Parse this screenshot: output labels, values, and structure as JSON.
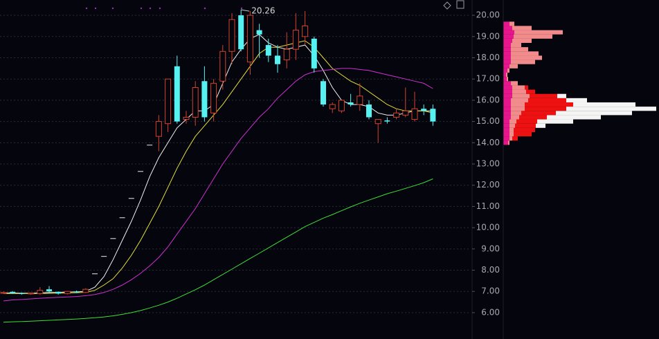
{
  "chart_data": {
    "type": "candlestick",
    "up_color": "#d2432e",
    "down_color": "#56f2f2",
    "flat_color": "#c8c8c8",
    "grid": true,
    "ylim": [
      4.76,
      20.72
    ],
    "yticks": [
      {
        "value": 20,
        "label": "20.00"
      },
      {
        "value": 19,
        "label": "19.00"
      },
      {
        "value": 18,
        "label": "18.00"
      },
      {
        "value": 17,
        "label": "17.00"
      },
      {
        "value": 16,
        "label": "16.00"
      },
      {
        "value": 15,
        "label": "15.00"
      },
      {
        "value": 14,
        "label": "14.00"
      },
      {
        "value": 13,
        "label": "13.00"
      },
      {
        "value": 12,
        "label": "12.00"
      },
      {
        "value": 11,
        "label": "11.00"
      },
      {
        "value": 10,
        "label": "10.00"
      },
      {
        "value": 9,
        "label": "9.00"
      },
      {
        "value": 8,
        "label": "8.00"
      },
      {
        "value": 7,
        "label": "7.00"
      },
      {
        "value": 6,
        "label": "6.00"
      }
    ],
    "open": [
      6.92,
      6.98,
      6.92,
      6.88,
      6.9,
      7.1,
      6.98,
      6.9,
      7.0,
      6.95,
      7.85,
      8.67,
      9.51,
      10.49,
      11.4,
      12.67,
      13.91,
      14.3,
      14.9,
      17.6,
      15.1,
      15.2,
      16.9,
      15.4,
      16.9,
      18.3,
      20.0,
      17.8,
      19.3,
      18.6,
      18.1,
      17.9,
      18.4,
      19.0,
      18.9,
      16.9,
      15.6,
      15.5,
      15.9,
      15.8,
      15.8,
      14.9,
      15.05,
      15.2,
      15.3,
      15.1,
      15.6,
      15.6
    ],
    "high": [
      7.0,
      7.02,
      6.95,
      6.94,
      7.2,
      7.25,
      7.0,
      7.02,
      7.04,
      7.15,
      7.85,
      8.67,
      9.51,
      10.49,
      11.4,
      12.67,
      13.91,
      15.3,
      17.0,
      18.1,
      15.5,
      16.9,
      17.6,
      17.0,
      18.6,
      20.1,
      20.26,
      20.2,
      19.6,
      18.9,
      18.6,
      19.2,
      20.1,
      20.2,
      19.0,
      17.0,
      15.9,
      16.0,
      16.3,
      16.8,
      16.0,
      15.1,
      15.2,
      15.6,
      16.6,
      16.4,
      15.8,
      15.8
    ],
    "low": [
      6.88,
      6.88,
      6.85,
      6.84,
      6.85,
      6.95,
      6.85,
      6.86,
      6.92,
      6.92,
      7.85,
      8.67,
      9.51,
      10.49,
      11.4,
      12.67,
      13.91,
      13.6,
      14.5,
      14.9,
      14.9,
      14.8,
      15.0,
      15.0,
      16.5,
      17.7,
      18.3,
      17.2,
      18.0,
      17.8,
      17.3,
      17.5,
      17.9,
      18.6,
      17.3,
      15.7,
      15.4,
      15.4,
      15.7,
      15.5,
      15.1,
      14.0,
      14.9,
      15.1,
      15.2,
      15.0,
      15.3,
      14.8
    ],
    "close": [
      6.95,
      6.92,
      6.88,
      6.92,
      7.05,
      7.0,
      6.9,
      7.0,
      6.95,
      7.1,
      7.85,
      8.67,
      9.51,
      10.49,
      11.4,
      12.67,
      13.91,
      15.0,
      17.0,
      15.0,
      15.2,
      16.6,
      15.2,
      16.8,
      18.3,
      19.8,
      18.4,
      20.0,
      19.1,
      18.1,
      17.7,
      18.4,
      19.3,
      19.5,
      17.5,
      15.8,
      15.8,
      16.0,
      15.8,
      16.2,
      15.2,
      15.1,
      15.0,
      15.4,
      15.5,
      15.6,
      15.5,
      15.0
    ],
    "max_annotation": 20.26,
    "moving_averages": [
      {
        "color": "#f2f2f2",
        "values": [
          6.93,
          6.93,
          6.92,
          6.92,
          6.93,
          6.95,
          6.96,
          6.97,
          6.98,
          7.0,
          7.2,
          7.7,
          8.5,
          9.4,
          10.3,
          11.3,
          12.4,
          13.3,
          14.0,
          14.7,
          15.1,
          15.5,
          15.5,
          15.8,
          16.8,
          17.8,
          18.4,
          18.9,
          19.1,
          18.7,
          18.5,
          18.4,
          18.5,
          18.6,
          18.1,
          17.4,
          16.6,
          16.0,
          15.8,
          15.8,
          15.7,
          15.4,
          15.3,
          15.3,
          15.4,
          15.5,
          15.5,
          15.5
        ]
      },
      {
        "color": "#e6df3a",
        "values": [
          6.9,
          6.9,
          6.9,
          6.9,
          6.9,
          6.91,
          6.92,
          6.93,
          6.94,
          6.96,
          7.05,
          7.3,
          7.6,
          8.1,
          8.7,
          9.4,
          10.2,
          11.0,
          11.9,
          12.8,
          13.6,
          14.3,
          14.8,
          15.3,
          15.8,
          16.4,
          17.0,
          17.6,
          18.2,
          18.5,
          18.5,
          18.6,
          18.7,
          18.8,
          18.5,
          18.0,
          17.5,
          17.2,
          16.9,
          16.7,
          16.4,
          16.1,
          15.8,
          15.6,
          15.5,
          15.5,
          15.5,
          15.4
        ]
      },
      {
        "color": "#d22fd2",
        "values": [
          6.55,
          6.6,
          6.62,
          6.65,
          6.68,
          6.7,
          6.72,
          6.74,
          6.76,
          6.8,
          6.85,
          6.95,
          7.1,
          7.3,
          7.55,
          7.85,
          8.2,
          8.6,
          9.1,
          9.7,
          10.3,
          10.9,
          11.6,
          12.3,
          13.0,
          13.6,
          14.2,
          14.7,
          15.2,
          15.6,
          16.1,
          16.5,
          16.9,
          17.2,
          17.35,
          17.4,
          17.45,
          17.5,
          17.5,
          17.45,
          17.4,
          17.3,
          17.2,
          17.1,
          17.0,
          16.9,
          16.8,
          16.55
        ]
      },
      {
        "color": "#3ee03a",
        "values": [
          5.55,
          5.57,
          5.58,
          5.6,
          5.62,
          5.64,
          5.66,
          5.68,
          5.7,
          5.73,
          5.76,
          5.8,
          5.85,
          5.92,
          6.0,
          6.1,
          6.22,
          6.35,
          6.5,
          6.68,
          6.88,
          7.08,
          7.3,
          7.55,
          7.8,
          8.05,
          8.3,
          8.55,
          8.8,
          9.05,
          9.3,
          9.55,
          9.8,
          10.05,
          10.25,
          10.45,
          10.62,
          10.8,
          10.98,
          11.15,
          11.3,
          11.45,
          11.6,
          11.72,
          11.85,
          11.98,
          12.12,
          12.3
        ]
      }
    ],
    "volume_profile": {
      "xlim": [
        0,
        220
      ],
      "prices": [
        14.0,
        14.2,
        14.4,
        14.6,
        14.8,
        15.0,
        15.2,
        15.4,
        15.6,
        15.8,
        16.0,
        16.2,
        16.4,
        16.6,
        16.8,
        17.0,
        17.2,
        17.4,
        17.6,
        17.8,
        18.0,
        18.2,
        18.4,
        18.6,
        18.8,
        19.0,
        19.2,
        19.4,
        19.6
      ],
      "series": [
        {
          "color": "#e8168c",
          "values": [
            6,
            8,
            8,
            8,
            8,
            8,
            10,
            10,
            10,
            10,
            10,
            12,
            12,
            12,
            10,
            4,
            3,
            5,
            8,
            10,
            10,
            10,
            10,
            10,
            12,
            14,
            15,
            12,
            8
          ]
        },
        {
          "color": "#f28c8c",
          "values": [
            2,
            4,
            6,
            6,
            8,
            10,
            12,
            15,
            20,
            20,
            25,
            25,
            20,
            18,
            10,
            2,
            2,
            3,
            12,
            35,
            45,
            40,
            25,
            15,
            28,
            56,
            70,
            28,
            7
          ]
        },
        {
          "color": "#ee1111",
          "values": [
            0,
            8,
            26,
            31,
            30,
            30,
            40,
            50,
            60,
            70,
            55,
            40,
            13,
            5,
            0,
            0,
            0,
            0,
            0,
            0,
            0,
            0,
            0,
            0,
            0,
            0,
            0,
            0,
            0
          ]
        },
        {
          "color": "#f4f4f4",
          "values": [
            0,
            0,
            0,
            0,
            14,
            52,
            78,
            110,
            130,
            90,
            30,
            13,
            0,
            0,
            0,
            0,
            0,
            0,
            0,
            0,
            0,
            0,
            0,
            0,
            0,
            0,
            0,
            0,
            0
          ]
        }
      ]
    }
  }
}
